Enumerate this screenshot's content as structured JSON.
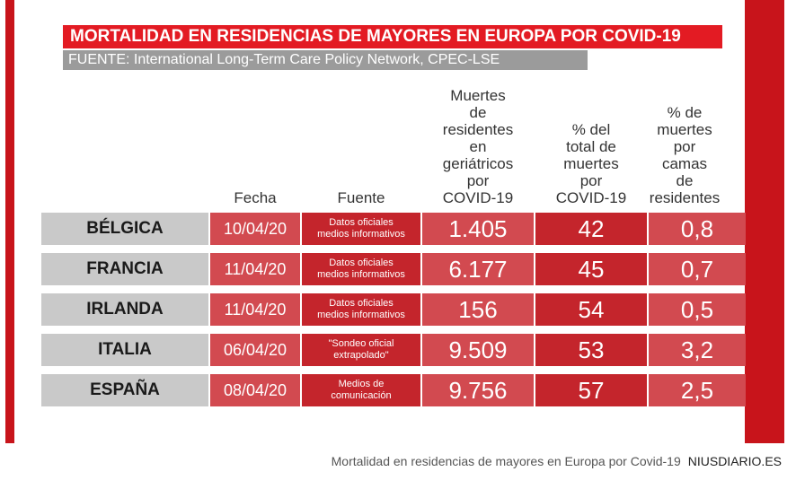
{
  "title": "MORTALIDAD EN RESIDENCIAS DE MAYORES EN EUROPA POR COVID-19",
  "source": "FUENTE: International Long-Term Care Policy Network, CPEC-LSE",
  "headers": {
    "fecha": "Fecha",
    "fuente": "Fuente",
    "deaths": "Muertes\nde\nresidentes\nen\ngeriátricos\npor\nCOVID-19",
    "pct_total": "% del\ntotal de\nmuertes\npor\nCOVID-19",
    "pct_beds": "% de\nmuertes\npor\ncamas\nde\nresidentes"
  },
  "chart_data": {
    "type": "table",
    "columns": [
      "",
      "Fecha",
      "Fuente",
      "Muertes de residentes en geriátricos por COVID-19",
      "% del total de muertes por COVID-19",
      "% de muertes por camas de residentes"
    ],
    "rows": [
      {
        "country": "BÉLGICA",
        "date": "10/04/20",
        "source": "Datos oficiales\nmedios informativos",
        "deaths": "1.405",
        "pct_total": "42",
        "pct_beds": "0,8"
      },
      {
        "country": "FRANCIA",
        "date": "11/04/20",
        "source": "Datos oficiales\nmedios informativos",
        "deaths": "6.177",
        "pct_total": "45",
        "pct_beds": "0,7"
      },
      {
        "country": "IRLANDA",
        "date": "11/04/20",
        "source": "Datos oficiales\nmedios informativos",
        "deaths": "156",
        "pct_total": "54",
        "pct_beds": "0,5"
      },
      {
        "country": "ITALIA",
        "date": "06/04/20",
        "source": "\"Sondeo oficial\nextrapolado\"",
        "deaths": "9.509",
        "pct_total": "53",
        "pct_beds": "3,2"
      },
      {
        "country": "ESPAÑA",
        "date": "08/04/20",
        "source": "Medios de\ncomunicación",
        "deaths": "9.756",
        "pct_total": "57",
        "pct_beds": "2,5"
      }
    ]
  },
  "caption": {
    "text": "Mortalidad en residencias de mayores en Europa por Covid-19",
    "brand": "NIUSDIARIO.ES"
  },
  "colors": {
    "red": "#e31b23",
    "dark_red": "#c8141b",
    "grey": "#9b9b9b"
  }
}
